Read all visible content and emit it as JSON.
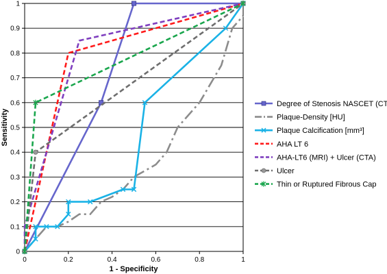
{
  "chart_data": {
    "type": "line",
    "title": "",
    "xlabel": "1 - Specificity",
    "ylabel": "Sensitivity",
    "xlim": [
      0,
      1
    ],
    "ylim": [
      0,
      1
    ],
    "xticks": [
      "0",
      "0.2",
      "0.4",
      "0.6",
      "0.8",
      "1"
    ],
    "yticks": [
      "0",
      "0.1",
      "0.2",
      "0.3",
      "0.4",
      "0.5",
      "0.6",
      "0.7",
      "0.8",
      "0.9",
      "1"
    ],
    "grid": "horizontal",
    "legend_position": "right",
    "series": [
      {
        "name": "Degree of Stenosis NASCET (CTA)",
        "color": "#6666cc",
        "dash": "solid",
        "marker": "square",
        "points": [
          [
            0,
            0
          ],
          [
            0.35,
            0.6
          ],
          [
            0.5,
            1
          ],
          [
            1,
            1
          ]
        ]
      },
      {
        "name": "Plaque-Density [HU]",
        "color": "#8c8c8c",
        "dash": "longdash",
        "marker": "none",
        "points": [
          [
            0,
            0
          ],
          [
            0.05,
            0.05
          ],
          [
            0.1,
            0.1
          ],
          [
            0.15,
            0.1
          ],
          [
            0.2,
            0.12
          ],
          [
            0.25,
            0.15
          ],
          [
            0.3,
            0.15
          ],
          [
            0.35,
            0.2
          ],
          [
            0.4,
            0.22
          ],
          [
            0.45,
            0.25
          ],
          [
            0.5,
            0.3
          ],
          [
            0.6,
            0.35
          ],
          [
            0.65,
            0.4
          ],
          [
            0.7,
            0.5
          ],
          [
            0.8,
            0.6
          ],
          [
            0.9,
            0.75
          ],
          [
            0.95,
            0.9
          ],
          [
            1,
            0.95
          ]
        ]
      },
      {
        "name": "Plaque Calcification [mm³]",
        "color": "#1ab2e6",
        "dash": "solid",
        "marker": "x",
        "points": [
          [
            0,
            0
          ],
          [
            0.05,
            0.05
          ],
          [
            0.05,
            0.1
          ],
          [
            0.1,
            0.1
          ],
          [
            0.15,
            0.1
          ],
          [
            0.2,
            0.15
          ],
          [
            0.2,
            0.2
          ],
          [
            0.3,
            0.2
          ],
          [
            0.45,
            0.25
          ],
          [
            0.5,
            0.25
          ],
          [
            0.55,
            0.6
          ],
          [
            0.92,
            0.9
          ],
          [
            1,
            1
          ]
        ]
      },
      {
        "name": "AHA LT 6",
        "color": "#ff1a1a",
        "dash": "dash",
        "marker": "none",
        "points": [
          [
            0,
            0
          ],
          [
            0.2,
            0.8
          ],
          [
            1,
            1
          ]
        ]
      },
      {
        "name": "AHA-LT6 (MRI) + Ulcer (CTA)",
        "color": "#7f3fbf",
        "dash": "dash",
        "marker": "none",
        "points": [
          [
            0,
            0
          ],
          [
            0,
            0.1
          ],
          [
            0.25,
            0.85
          ],
          [
            1,
            1
          ]
        ]
      },
      {
        "name": "Ulcer",
        "color": "#6e6e6e",
        "dash": "dash",
        "marker": "circle",
        "points": [
          [
            0,
            0
          ],
          [
            0.05,
            0.4
          ],
          [
            1,
            1
          ]
        ]
      },
      {
        "name": "Thin or Ruptured Fibrous Cap",
        "color": "#1aa64d",
        "dash": "dash",
        "marker": "asterisk",
        "points": [
          [
            0,
            0
          ],
          [
            0.05,
            0.6
          ],
          [
            1,
            1
          ]
        ]
      }
    ]
  }
}
